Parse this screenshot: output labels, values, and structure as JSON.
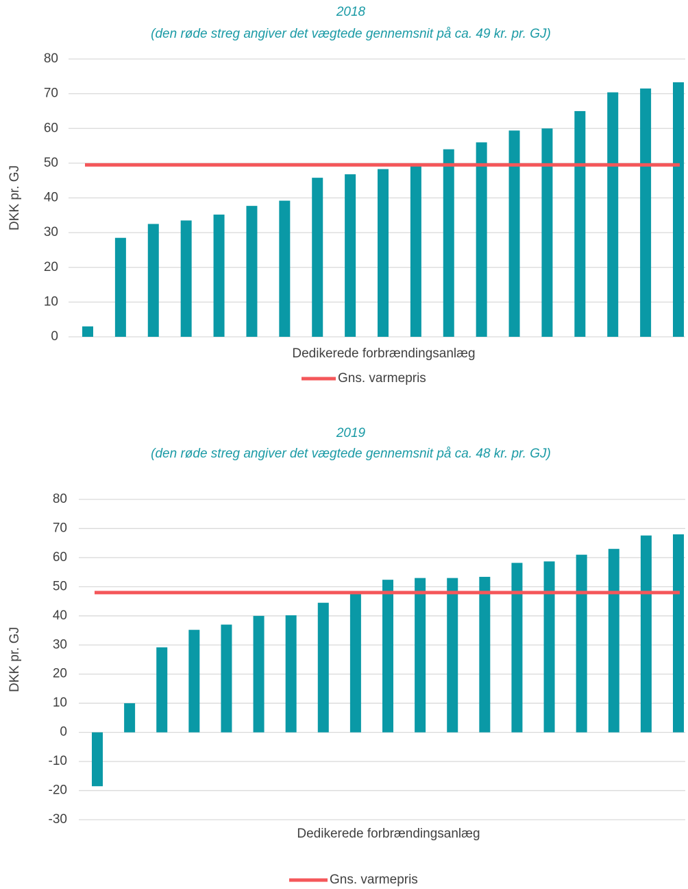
{
  "chart_data": [
    {
      "type": "bar",
      "title": "2018",
      "subtitle": "(den røde streg angiver det vægtede gennemsnit på ca. 49 kr. pr. GJ)",
      "ylabel": "DKK pr. GJ",
      "xlabel": "Dedikerede forbrændingsanlæg",
      "color": "#0a99a6",
      "values": [
        3,
        28.5,
        32.5,
        33.5,
        35.2,
        37.7,
        39.2,
        45.8,
        46.8,
        48.3,
        49.5,
        54,
        56,
        59.4,
        60,
        65,
        70.4,
        71.5,
        73.3
      ],
      "reference_line": {
        "name": "Gns. varmepris",
        "value": 49.5,
        "color": "#f4575a"
      },
      "ylim": [
        0,
        80
      ],
      "yticks": [
        0,
        10,
        20,
        30,
        40,
        50,
        60,
        70,
        80
      ],
      "grid": true
    },
    {
      "type": "bar",
      "title": "2019",
      "subtitle": "(den røde streg angiver det vægtede gennemsnit på ca. 48 kr. pr. GJ)",
      "ylabel": "DKK pr. GJ",
      "xlabel": "Dedikerede forbrændingsanlæg",
      "color": "#0a99a6",
      "values": [
        -18.5,
        10,
        29.2,
        35.2,
        37,
        40,
        40.2,
        44.5,
        47.5,
        52.4,
        53,
        53,
        53.4,
        58.2,
        58.7,
        61,
        63,
        67.6,
        68
      ],
      "reference_line": {
        "name": "Gns. varmepris",
        "value": 48,
        "color": "#f4575a"
      },
      "ylim": [
        -30,
        80
      ],
      "yticks": [
        -30,
        -20,
        -10,
        0,
        10,
        20,
        30,
        40,
        50,
        60,
        70,
        80
      ],
      "grid": true
    }
  ]
}
